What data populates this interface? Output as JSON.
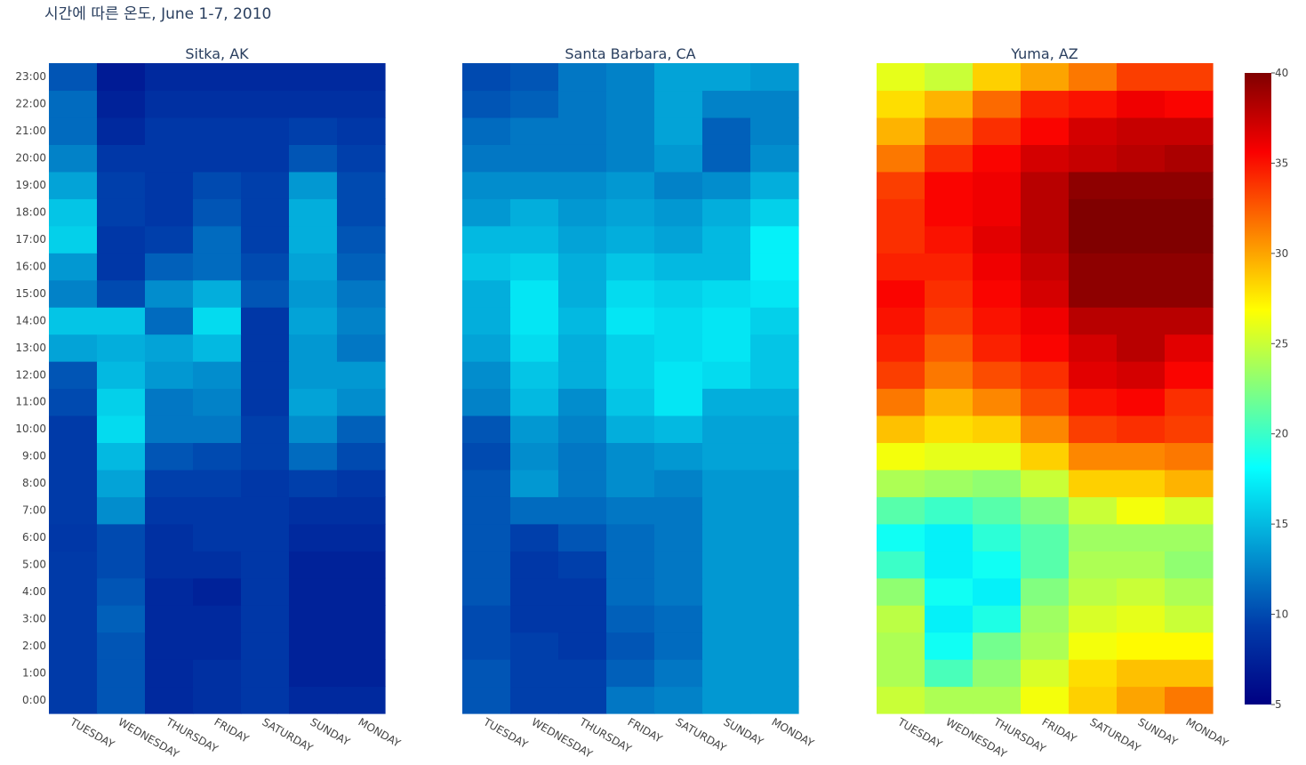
{
  "chart_data": {
    "type": "heatmap",
    "title": "시간에 따른 온도, June 1-7, 2010",
    "x_categories": [
      "TUESDAY",
      "WEDNESDAY",
      "THURSDAY",
      "FRIDAY",
      "SATURDAY",
      "SUNDAY",
      "MONDAY"
    ],
    "y_categories": [
      "0:00",
      "1:00",
      "2:00",
      "3:00",
      "4:00",
      "5:00",
      "6:00",
      "7:00",
      "8:00",
      "9:00",
      "10:00",
      "11:00",
      "12:00",
      "13:00",
      "14:00",
      "15:00",
      "16:00",
      "17:00",
      "18:00",
      "19:00",
      "20:00",
      "21:00",
      "22:00",
      "23:00"
    ],
    "colorscale": "jet",
    "zmin": 5,
    "zmax": 40,
    "colorbar_ticks": [
      "5",
      "10",
      "15",
      "20",
      "25",
      "30",
      "35",
      "40"
    ],
    "panels": [
      {
        "title": "Sitka, AK",
        "z": [
          [
            9.2,
            10.5,
            8.0,
            8.5,
            9.0,
            8.0,
            8.0
          ],
          [
            9.2,
            10.5,
            8.0,
            8.5,
            9.0,
            7.5,
            7.5
          ],
          [
            9.2,
            10.5,
            8.0,
            8.0,
            9.0,
            7.5,
            7.5
          ],
          [
            9.2,
            11.0,
            8.0,
            8.0,
            9.0,
            7.5,
            7.5
          ],
          [
            9.2,
            10.5,
            8.0,
            7.5,
            9.0,
            7.5,
            7.5
          ],
          [
            9.2,
            10.0,
            8.5,
            8.5,
            9.0,
            7.5,
            7.5
          ],
          [
            9.0,
            10.0,
            8.5,
            9.0,
            9.0,
            8.0,
            8.0
          ],
          [
            9.2,
            13.0,
            9.0,
            9.0,
            9.0,
            8.5,
            8.5
          ],
          [
            9.2,
            14.0,
            9.5,
            9.5,
            9.0,
            9.5,
            9.0
          ],
          [
            9.2,
            15.0,
            10.5,
            10.0,
            9.5,
            11.5,
            10.0
          ],
          [
            9.2,
            16.5,
            12.0,
            12.0,
            9.5,
            13.0,
            11.0
          ],
          [
            10.0,
            16.0,
            12.0,
            12.5,
            9.0,
            14.0,
            13.0
          ],
          [
            10.5,
            15.0,
            13.5,
            13.0,
            9.0,
            13.5,
            13.5
          ],
          [
            14.0,
            14.5,
            14.0,
            15.0,
            9.0,
            13.5,
            12.0
          ],
          [
            15.5,
            15.5,
            11.5,
            16.5,
            9.0,
            14.0,
            12.5
          ],
          [
            12.5,
            10.0,
            13.0,
            14.5,
            10.5,
            13.5,
            12.0
          ],
          [
            13.5,
            9.0,
            11.0,
            11.5,
            10.0,
            14.0,
            11.0
          ],
          [
            16.0,
            9.0,
            9.5,
            11.5,
            9.5,
            14.5,
            10.5
          ],
          [
            15.5,
            9.5,
            9.0,
            10.5,
            9.5,
            14.5,
            10.0
          ],
          [
            14.0,
            9.5,
            9.0,
            10.0,
            9.5,
            13.5,
            10.0
          ],
          [
            12.5,
            9.0,
            9.0,
            9.0,
            9.0,
            10.5,
            9.5
          ],
          [
            11.5,
            8.0,
            9.0,
            9.0,
            9.0,
            9.5,
            9.0
          ],
          [
            11.5,
            7.5,
            8.5,
            8.5,
            8.5,
            8.5,
            8.5
          ],
          [
            10.5,
            7.0,
            8.0,
            8.0,
            8.0,
            8.0,
            8.0
          ]
        ]
      },
      {
        "title": "Santa Barbara, CA",
        "z": [
          [
            10.5,
            9.5,
            9.5,
            12.0,
            12.5,
            13.5,
            13.5
          ],
          [
            10.5,
            9.5,
            9.5,
            11.0,
            12.0,
            13.5,
            13.5
          ],
          [
            10.0,
            9.5,
            9.0,
            10.5,
            11.5,
            13.5,
            13.5
          ],
          [
            10.0,
            9.0,
            9.0,
            11.0,
            11.5,
            13.5,
            13.5
          ],
          [
            10.5,
            9.0,
            9.0,
            11.5,
            12.0,
            13.5,
            13.5
          ],
          [
            10.5,
            9.0,
            9.5,
            11.5,
            12.0,
            13.5,
            13.5
          ],
          [
            10.5,
            9.5,
            10.5,
            11.5,
            12.0,
            13.5,
            13.5
          ],
          [
            10.5,
            11.5,
            11.5,
            12.0,
            12.0,
            13.5,
            13.5
          ],
          [
            10.5,
            13.5,
            12.0,
            13.0,
            12.5,
            13.5,
            13.5
          ],
          [
            10.0,
            13.0,
            12.0,
            13.0,
            13.5,
            14.0,
            14.0
          ],
          [
            10.5,
            13.5,
            12.5,
            14.5,
            15.0,
            14.0,
            14.0
          ],
          [
            12.5,
            15.0,
            13.0,
            15.5,
            17.0,
            14.5,
            14.5
          ],
          [
            13.0,
            15.5,
            14.5,
            16.0,
            17.0,
            16.5,
            15.5
          ],
          [
            14.0,
            16.5,
            14.5,
            16.0,
            16.5,
            17.0,
            15.5
          ],
          [
            14.5,
            17.0,
            15.0,
            17.0,
            16.5,
            17.0,
            16.0
          ],
          [
            14.5,
            17.0,
            14.5,
            16.5,
            16.0,
            16.5,
            17.0
          ],
          [
            15.5,
            16.0,
            14.5,
            15.5,
            15.0,
            15.0,
            17.5
          ],
          [
            15.0,
            15.0,
            14.0,
            14.5,
            14.0,
            15.0,
            17.5
          ],
          [
            13.5,
            14.5,
            13.5,
            14.0,
            13.5,
            14.5,
            16.0
          ],
          [
            13.0,
            13.0,
            13.0,
            13.5,
            12.5,
            13.0,
            14.5
          ],
          [
            12.0,
            12.0,
            12.0,
            12.5,
            13.5,
            11.0,
            13.0
          ],
          [
            11.5,
            12.0,
            12.0,
            12.5,
            14.0,
            11.0,
            12.5
          ],
          [
            10.5,
            11.0,
            12.0,
            12.5,
            14.0,
            12.5,
            12.5
          ],
          [
            10.0,
            10.5,
            12.0,
            12.5,
            14.0,
            14.0,
            13.5
          ]
        ]
      },
      {
        "title": "Yuma, AZ",
        "z": [
          [
            25.0,
            24.0,
            24.0,
            26.5,
            28.5,
            30.0,
            31.5
          ],
          [
            24.0,
            20.5,
            23.0,
            25.5,
            28.0,
            29.0,
            29.0
          ],
          [
            24.0,
            18.5,
            22.0,
            24.0,
            26.5,
            27.0,
            27.0
          ],
          [
            24.5,
            17.5,
            19.0,
            23.5,
            25.5,
            26.0,
            25.0
          ],
          [
            23.0,
            18.5,
            17.5,
            22.5,
            24.5,
            25.0,
            24.0
          ],
          [
            20.0,
            17.5,
            18.5,
            21.0,
            24.0,
            24.0,
            23.0
          ],
          [
            18.5,
            17.5,
            19.5,
            21.0,
            23.5,
            23.5,
            23.5
          ],
          [
            21.0,
            20.0,
            21.0,
            22.5,
            25.0,
            26.5,
            25.5
          ],
          [
            24.0,
            23.5,
            23.0,
            25.0,
            28.5,
            28.5,
            29.5
          ],
          [
            26.5,
            26.0,
            26.0,
            28.5,
            31.0,
            31.0,
            31.5
          ],
          [
            29.0,
            28.0,
            28.5,
            31.0,
            33.5,
            34.0,
            33.5
          ],
          [
            31.5,
            29.5,
            31.0,
            33.0,
            35.0,
            35.5,
            34.0
          ],
          [
            33.5,
            31.5,
            33.0,
            34.0,
            36.5,
            37.0,
            35.5
          ],
          [
            34.5,
            32.5,
            34.5,
            35.5,
            37.0,
            38.0,
            36.5
          ],
          [
            35.0,
            33.5,
            35.0,
            36.0,
            38.0,
            38.0,
            38.0
          ],
          [
            35.5,
            34.0,
            35.5,
            37.0,
            39.5,
            39.5,
            39.5
          ],
          [
            34.5,
            34.5,
            36.0,
            37.5,
            39.5,
            39.5,
            39.5
          ],
          [
            34.0,
            35.0,
            36.5,
            38.0,
            40.0,
            40.0,
            40.0
          ],
          [
            34.0,
            35.5,
            36.0,
            38.0,
            40.0,
            40.0,
            40.0
          ],
          [
            33.5,
            35.5,
            36.0,
            38.0,
            39.5,
            39.5,
            39.5
          ],
          [
            31.5,
            34.0,
            35.5,
            37.0,
            37.5,
            38.0,
            38.5
          ],
          [
            29.5,
            32.0,
            34.0,
            35.5,
            37.0,
            37.5,
            37.5
          ],
          [
            28.0,
            29.5,
            32.0,
            34.5,
            35.0,
            36.0,
            35.5
          ],
          [
            26.0,
            25.0,
            28.5,
            30.0,
            31.5,
            33.5,
            33.5
          ]
        ]
      }
    ]
  }
}
